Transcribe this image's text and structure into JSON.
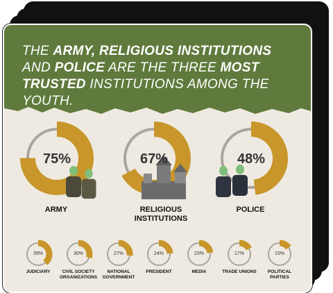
{
  "headline": {
    "p1": "THE ",
    "b1": "ARMY, RELIGIOUS INSTITUTIONS",
    "p2": " AND ",
    "b2": "POLICE",
    "p3": " ARE THE THREE ",
    "b3": "MOST TRUSTED",
    "p4": " INSTITUTIONS AMONG THE YOUTH."
  },
  "colors": {
    "banner": "#5f7a3c",
    "accent": "#c8962a",
    "track": "#aaa59c",
    "card": "#efeae1"
  },
  "top": [
    {
      "pct_label": "75%",
      "value": 75,
      "label": "ARMY",
      "icon": "soldiers-icon"
    },
    {
      "pct_label": "67%",
      "value": 67,
      "label": "RELIGIOUS INSTITUTIONS",
      "icon": "church-icon"
    },
    {
      "pct_label": "48%",
      "value": 48,
      "label": "POLICE",
      "icon": "police-icon"
    }
  ],
  "bottom": [
    {
      "pct_label": "39%",
      "value": 39,
      "label": "JUDICIARY"
    },
    {
      "pct_label": "30%",
      "value": 30,
      "label": "CIVIL SOCIETY ORGANIZATIONS"
    },
    {
      "pct_label": "27%",
      "value": 27,
      "label": "NATIONAL GOVERNMENT"
    },
    {
      "pct_label": "24%",
      "value": 24,
      "label": "PRESIDENT"
    },
    {
      "pct_label": "23%",
      "value": 23,
      "label": "MEDIA"
    },
    {
      "pct_label": "17%",
      "value": 17,
      "label": "TRADE UNIONS"
    },
    {
      "pct_label": "15%",
      "value": 15,
      "label": "POLITICAL PARTIES"
    }
  ]
}
